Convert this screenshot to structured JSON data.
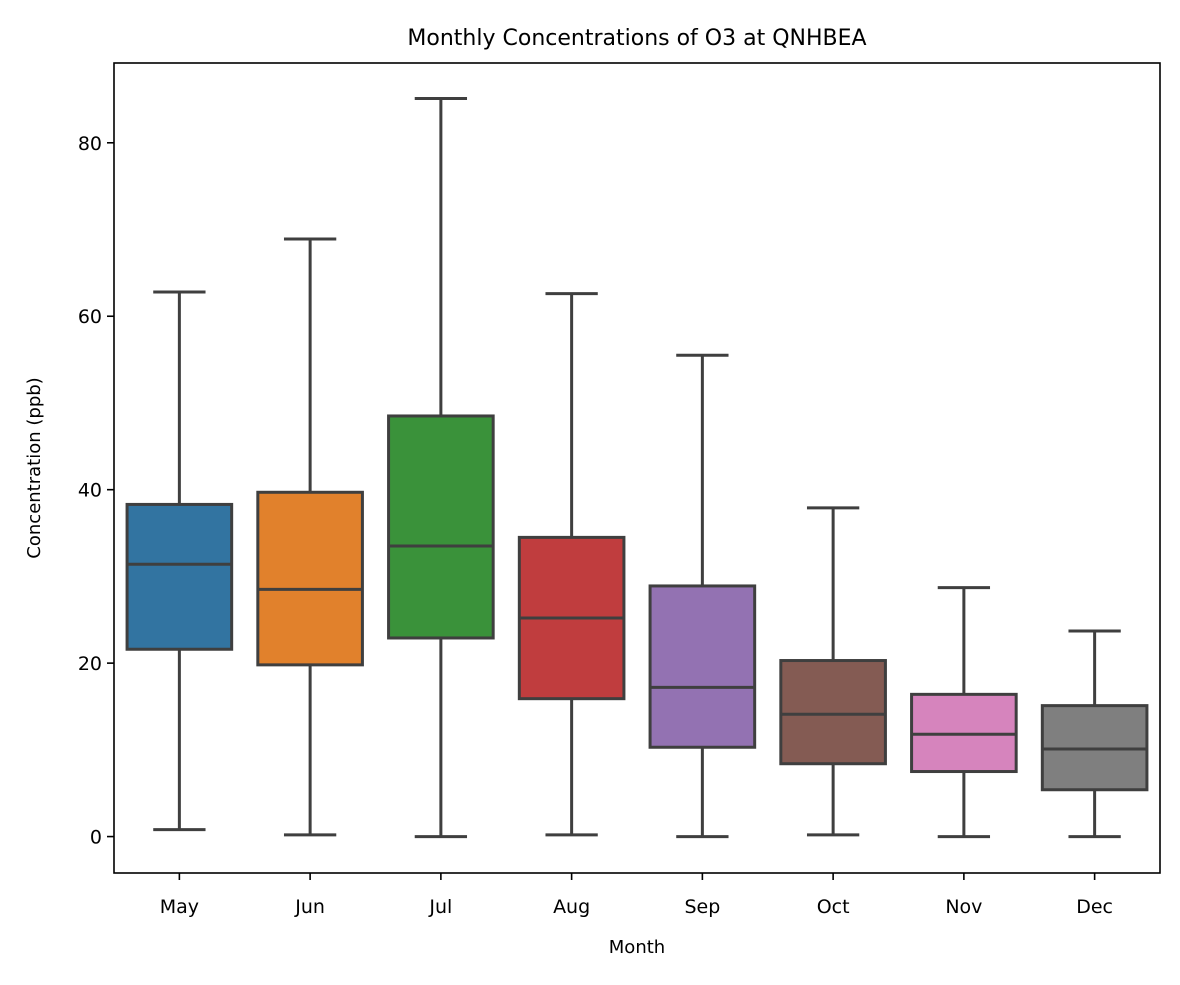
{
  "chart_data": {
    "type": "box",
    "title": "Monthly Concentrations of O3 at QNHBEA",
    "xlabel": "Month",
    "ylabel": "Concentration (ppb)",
    "categories": [
      "May",
      "Jun",
      "Jul",
      "Aug",
      "Sep",
      "Oct",
      "Nov",
      "Dec"
    ],
    "ylim": [
      -4.2,
      89.2
    ],
    "yticks": [
      0,
      20,
      40,
      60,
      80
    ],
    "grid": false,
    "legend": "none",
    "colors": [
      "#3274a1",
      "#e1812c",
      "#3a923a",
      "#c03d3e",
      "#9372b2",
      "#845b53",
      "#d684bd",
      "#7f7f7f"
    ],
    "line_color": "#3f3f3f",
    "boxes": [
      {
        "category": "May",
        "whisker_low": 0.8,
        "q1": 21.6,
        "median": 31.4,
        "q3": 38.3,
        "whisker_high": 62.8
      },
      {
        "category": "Jun",
        "whisker_low": 0.2,
        "q1": 19.8,
        "median": 28.5,
        "q3": 39.7,
        "whisker_high": 68.9
      },
      {
        "category": "Jul",
        "whisker_low": 0.0,
        "q1": 22.9,
        "median": 33.5,
        "q3": 48.5,
        "whisker_high": 85.1
      },
      {
        "category": "Aug",
        "whisker_low": 0.2,
        "q1": 15.9,
        "median": 25.2,
        "q3": 34.5,
        "whisker_high": 62.6
      },
      {
        "category": "Sep",
        "whisker_low": 0.0,
        "q1": 10.3,
        "median": 17.2,
        "q3": 28.9,
        "whisker_high": 55.5
      },
      {
        "category": "Oct",
        "whisker_low": 0.2,
        "q1": 8.4,
        "median": 14.1,
        "q3": 20.3,
        "whisker_high": 37.9
      },
      {
        "category": "Nov",
        "whisker_low": 0.0,
        "q1": 7.5,
        "median": 11.8,
        "q3": 16.4,
        "whisker_high": 28.7
      },
      {
        "category": "Dec",
        "whisker_low": 0.0,
        "q1": 5.4,
        "median": 10.1,
        "q3": 15.1,
        "whisker_high": 23.7
      }
    ]
  }
}
